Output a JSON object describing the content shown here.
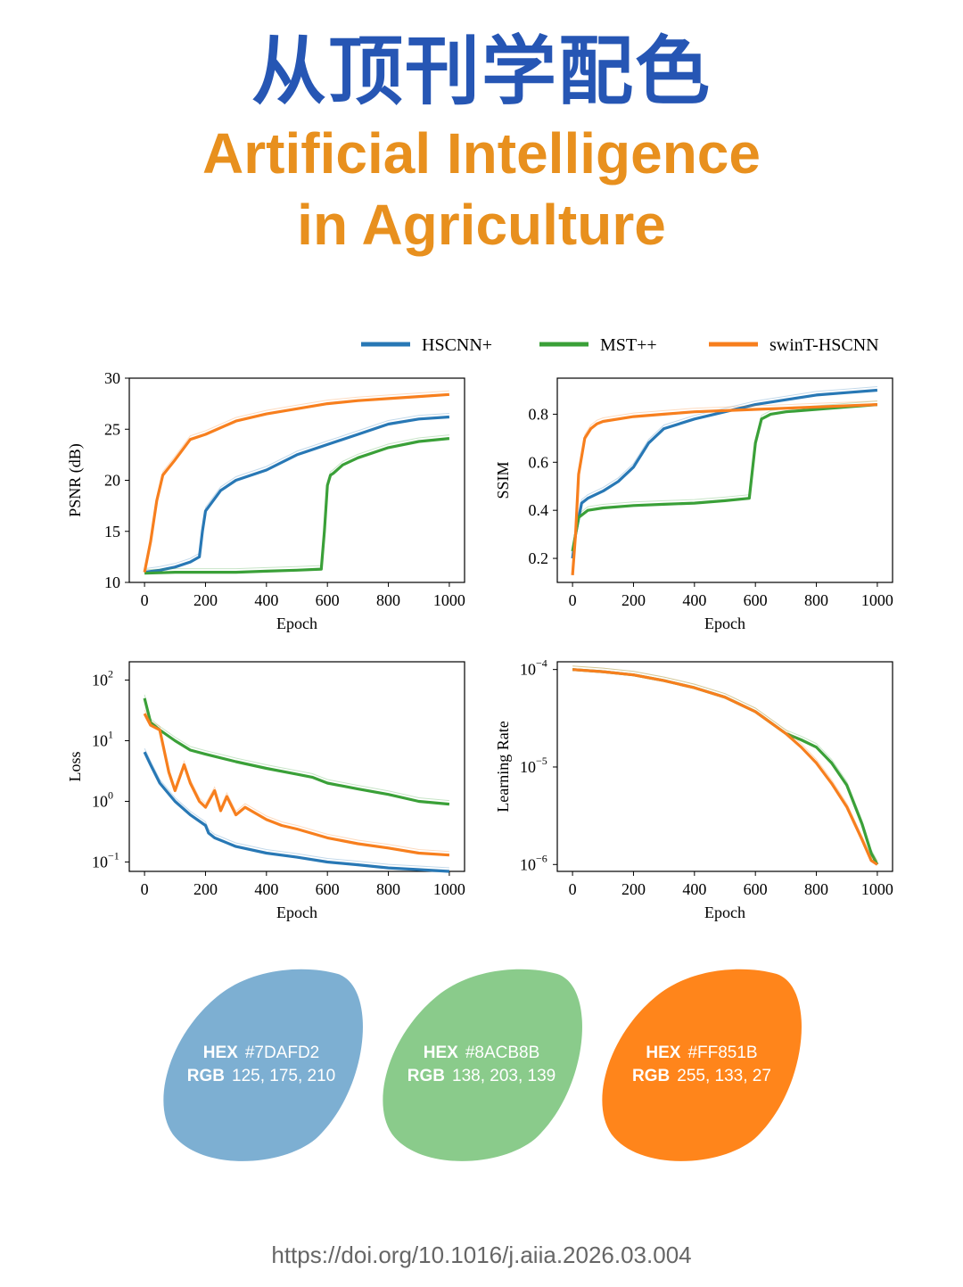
{
  "header": {
    "title_cn": "从顶刊学配色",
    "title_en_line1": "Artificial Intelligence",
    "title_en_line2": "in Agriculture"
  },
  "legend": [
    {
      "name": "HSCNN+",
      "color": "#2878b5"
    },
    {
      "name": "MST++",
      "color": "#3aa038"
    },
    {
      "name": "swinT-HSCNN",
      "color": "#f77f1e"
    }
  ],
  "chart_data": [
    {
      "type": "line",
      "xlabel": "Epoch",
      "ylabel": "PSNR (dB)",
      "xlim": [
        -50,
        1050
      ],
      "ylim": [
        10,
        30
      ],
      "xticks": [
        0,
        200,
        400,
        600,
        800,
        1000
      ],
      "yticks": [
        10,
        15,
        20,
        25,
        30
      ],
      "series": [
        {
          "name": "HSCNN+",
          "x": [
            0,
            50,
            100,
            150,
            180,
            190,
            200,
            250,
            300,
            400,
            500,
            600,
            700,
            800,
            900,
            1000
          ],
          "y": [
            11,
            11.2,
            11.5,
            12,
            12.5,
            15,
            17,
            19,
            20,
            21,
            22.5,
            23.5,
            24.5,
            25.5,
            26,
            26.2
          ]
        },
        {
          "name": "MST++",
          "x": [
            0,
            100,
            200,
            300,
            400,
            500,
            580,
            590,
            600,
            610,
            620,
            650,
            700,
            800,
            900,
            1000
          ],
          "y": [
            10.9,
            11,
            11,
            11,
            11.1,
            11.2,
            11.3,
            15,
            19.5,
            20.5,
            20.7,
            21.5,
            22.2,
            23.2,
            23.8,
            24.1
          ]
        },
        {
          "name": "swinT-HSCNN",
          "x": [
            0,
            20,
            40,
            60,
            100,
            150,
            200,
            300,
            400,
            500,
            600,
            700,
            800,
            900,
            1000
          ],
          "y": [
            11,
            14,
            18,
            20.5,
            22,
            24,
            24.5,
            25.8,
            26.5,
            27,
            27.5,
            27.8,
            28,
            28.2,
            28.4
          ]
        }
      ]
    },
    {
      "type": "line",
      "xlabel": "Epoch",
      "ylabel": "SSIM",
      "xlim": [
        -50,
        1050
      ],
      "ylim": [
        0.1,
        0.95
      ],
      "xticks": [
        0,
        200,
        400,
        600,
        800,
        1000
      ],
      "yticks": [
        0.2,
        0.4,
        0.6,
        0.8
      ],
      "series": [
        {
          "name": "HSCNN+",
          "x": [
            0,
            10,
            30,
            50,
            100,
            150,
            200,
            250,
            300,
            400,
            500,
            600,
            700,
            800,
            900,
            1000
          ],
          "y": [
            0.2,
            0.3,
            0.43,
            0.45,
            0.48,
            0.52,
            0.58,
            0.68,
            0.74,
            0.78,
            0.81,
            0.84,
            0.86,
            0.88,
            0.89,
            0.9
          ]
        },
        {
          "name": "MST++",
          "x": [
            0,
            10,
            20,
            50,
            100,
            200,
            300,
            400,
            500,
            580,
            600,
            620,
            650,
            700,
            800,
            900,
            1000
          ],
          "y": [
            0.23,
            0.3,
            0.37,
            0.4,
            0.41,
            0.42,
            0.425,
            0.43,
            0.44,
            0.45,
            0.68,
            0.78,
            0.8,
            0.81,
            0.82,
            0.83,
            0.84
          ]
        },
        {
          "name": "swinT-HSCNN",
          "x": [
            0,
            10,
            20,
            40,
            60,
            80,
            100,
            200,
            300,
            400,
            500,
            600,
            700,
            800,
            900,
            1000
          ],
          "y": [
            0.13,
            0.3,
            0.55,
            0.7,
            0.74,
            0.76,
            0.77,
            0.79,
            0.8,
            0.81,
            0.815,
            0.82,
            0.825,
            0.83,
            0.835,
            0.84
          ]
        }
      ]
    },
    {
      "type": "line",
      "xlabel": "Epoch",
      "ylabel": "Loss",
      "yscale": "log",
      "xlim": [
        -50,
        1050
      ],
      "ylim": [
        0.07,
        200
      ],
      "xticks": [
        0,
        200,
        400,
        600,
        800,
        1000
      ],
      "yticks": [
        0.1,
        1,
        10,
        100
      ],
      "yticklabels": [
        "10",
        "10",
        "10",
        "10"
      ],
      "ytickexponents": [
        "−1",
        "0",
        "1",
        "2"
      ],
      "series": [
        {
          "name": "HSCNN+",
          "x": [
            0,
            20,
            50,
            100,
            150,
            200,
            210,
            230,
            300,
            400,
            500,
            600,
            700,
            800,
            900,
            1000
          ],
          "y": [
            6.5,
            4,
            2,
            1,
            0.6,
            0.4,
            0.3,
            0.25,
            0.18,
            0.14,
            0.12,
            0.1,
            0.09,
            0.08,
            0.075,
            0.07
          ]
        },
        {
          "name": "MST++",
          "x": [
            0,
            20,
            50,
            100,
            150,
            200,
            300,
            400,
            500,
            550,
            600,
            700,
            800,
            900,
            1000
          ],
          "y": [
            50,
            20,
            15,
            10,
            7,
            6,
            4.5,
            3.5,
            2.8,
            2.5,
            2,
            1.6,
            1.3,
            1,
            0.9
          ]
        },
        {
          "name": "swinT-HSCNN",
          "x": [
            0,
            20,
            50,
            80,
            100,
            130,
            150,
            180,
            200,
            230,
            250,
            270,
            300,
            330,
            400,
            450,
            500,
            600,
            700,
            800,
            900,
            1000
          ],
          "y": [
            28,
            18,
            15,
            3,
            1.5,
            4,
            2,
            1,
            0.8,
            1.5,
            0.7,
            1.2,
            0.6,
            0.8,
            0.5,
            0.4,
            0.35,
            0.25,
            0.2,
            0.17,
            0.14,
            0.13
          ]
        }
      ]
    },
    {
      "type": "line",
      "xlabel": "Epoch",
      "ylabel": "Learning Rate",
      "yscale": "log",
      "xlim": [
        -50,
        1050
      ],
      "ylim": [
        8.5e-07,
        0.00012
      ],
      "xticks": [
        0,
        200,
        400,
        600,
        800,
        1000
      ],
      "yticks": [
        1e-06,
        1e-05,
        0.0001
      ],
      "yticklabels": [
        "10",
        "10",
        "10"
      ],
      "ytickexponents": [
        "−6",
        "−5",
        "−4"
      ],
      "series": [
        {
          "name": "MST++",
          "x": [
            0,
            100,
            200,
            300,
            400,
            500,
            600,
            700,
            750,
            800,
            850,
            900,
            950,
            980,
            1000
          ],
          "y": [
            0.0001,
            9.5e-05,
            8.8e-05,
            7.7e-05,
            6.5e-05,
            5.2e-05,
            3.7e-05,
            2.2e-05,
            1.9e-05,
            1.6e-05,
            1.1e-05,
            6.5e-06,
            2.6e-06,
            1.3e-06,
            1e-06
          ]
        },
        {
          "name": "swinT-HSCNN",
          "x": [
            0,
            100,
            200,
            300,
            400,
            500,
            600,
            700,
            750,
            800,
            850,
            900,
            950,
            980,
            1000
          ],
          "y": [
            0.0001,
            9.5e-05,
            8.8e-05,
            7.7e-05,
            6.5e-05,
            5.2e-05,
            3.7e-05,
            2.2e-05,
            1.6e-05,
            1.1e-05,
            6.8e-06,
            3.9e-06,
            1.8e-06,
            1.1e-06,
            1e-06
          ]
        }
      ]
    }
  ],
  "swatches": [
    {
      "hex_label": "HEX",
      "hex": "#7DAFD2",
      "rgb_label": "RGB",
      "rgb": "125, 175, 210",
      "color": "#7DAFD2"
    },
    {
      "hex_label": "HEX",
      "hex": "#8ACB8B",
      "rgb_label": "RGB",
      "rgb": "138, 203, 139",
      "color": "#8ACB8B"
    },
    {
      "hex_label": "HEX",
      "hex": "#FF851B",
      "rgb_label": "RGB",
      "rgb": "255, 133, 27",
      "color": "#FF851B"
    }
  ],
  "footer": {
    "doi": "https://doi.org/10.1016/j.aiia.2026.03.004"
  }
}
